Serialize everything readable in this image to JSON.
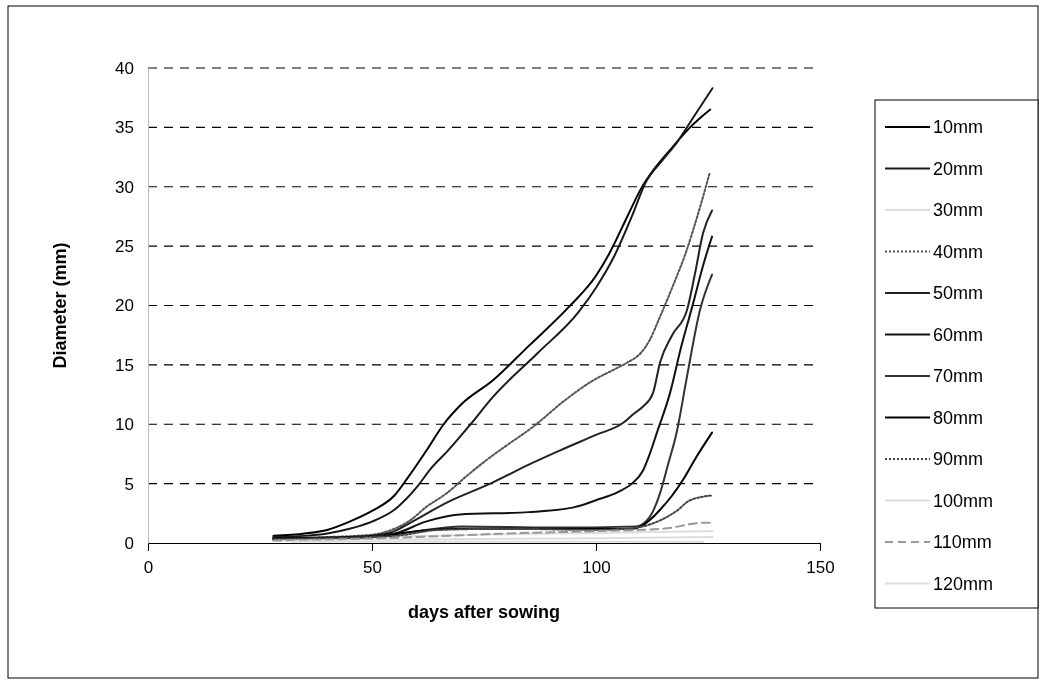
{
  "chart_data": {
    "type": "line",
    "xlabel": "days after sowing",
    "ylabel": "Diameter (mm)",
    "xlim": [
      0,
      150
    ],
    "xticks": [
      0,
      50,
      100,
      150
    ],
    "ylim": [
      0,
      40
    ],
    "yticks": [
      0,
      5,
      10,
      15,
      20,
      25,
      30,
      35,
      40
    ],
    "grid": "y",
    "legend": "right",
    "marker": "none",
    "series": [
      {
        "name": "10mm",
        "color": "#000000",
        "x": [
          28,
          35,
          40,
          45,
          50,
          55,
          58,
          62,
          66,
          70,
          77,
          85,
          94,
          100,
          103,
          107,
          110,
          113,
          117,
          121,
          125.5
        ],
        "values": [
          0.6,
          0.8,
          1.1,
          1.8,
          2.7,
          4.0,
          5.5,
          7.7,
          10.0,
          11.7,
          13.7,
          16.6,
          19.9,
          22.5,
          24.4,
          27.5,
          29.8,
          31.5,
          33.3,
          35,
          36.5
        ]
      },
      {
        "name": "20mm",
        "color": "#1a1a1a",
        "x": [
          28,
          35,
          40,
          45,
          50,
          55,
          60,
          63,
          67,
          72,
          77,
          87,
          96,
          100,
          104,
          108,
          111,
          115,
          118,
          122,
          126
        ],
        "values": [
          0.5,
          0.6,
          0.8,
          1.2,
          1.8,
          2.8,
          4.7,
          6.2,
          7.8,
          10,
          12.3,
          16,
          19.4,
          21.5,
          24.1,
          27.5,
          30.3,
          32.3,
          33.7,
          36,
          38.3
        ]
      },
      {
        "name": "30mm",
        "color": "#dddddd",
        "x": [
          28,
          60,
          90,
          110,
          126
        ],
        "values": [
          0.3,
          0.6,
          0.8,
          0.9,
          1.0
        ]
      },
      {
        "name": "40mm",
        "color": "#555555",
        "line_style": "dotted",
        "x": [
          28,
          40,
          50,
          55,
          58.5,
          62,
          66.7,
          71,
          75.6,
          80,
          86,
          93,
          99.4,
          104,
          107,
          110,
          112,
          114,
          117,
          120,
          123,
          125.4
        ],
        "values": [
          0.4,
          0.5,
          0.7,
          1.2,
          1.9,
          3,
          4.2,
          5.6,
          7,
          8.2,
          9.8,
          12,
          13.7,
          14.6,
          15.2,
          16,
          17.1,
          18.8,
          21.5,
          24.4,
          28,
          31.2
        ]
      },
      {
        "name": "50mm",
        "color": "#222222",
        "x": [
          28,
          40,
          50,
          55,
          58.5,
          66.7,
          77,
          85,
          92,
          100,
          106,
          108.5,
          110.5,
          112.7,
          114.3,
          117,
          120.3,
          122,
          123.9,
          125.9
        ],
        "values": [
          0.4,
          0.4,
          0.6,
          1.0,
          1.7,
          3.4,
          5.1,
          6.6,
          7.8,
          9.1,
          10.1,
          10.9,
          11.5,
          12.6,
          15.2,
          17.5,
          19.6,
          22.5,
          26.1,
          28
        ]
      },
      {
        "name": "60mm",
        "color": "#111111",
        "x": [
          28,
          45,
          55,
          62,
          69.6,
          85,
          95,
          100,
          105,
          108,
          110.5,
          112,
          113.6,
          116.5,
          119,
          121.7,
          124,
          125.9
        ],
        "values": [
          0.4,
          0.5,
          0.8,
          1.8,
          2.4,
          2.6,
          3.0,
          3.6,
          4.3,
          5.0,
          6.1,
          7.5,
          9.3,
          12.6,
          16.5,
          20.2,
          23.5,
          25.8
        ]
      },
      {
        "name": "70mm",
        "color": "#333333",
        "x": [
          28,
          50,
          60,
          70,
          90,
          109,
          112,
          114.3,
          116,
          118,
          120.3,
          123.2,
          125.9
        ],
        "values": [
          0.3,
          0.5,
          1.0,
          1.4,
          1.3,
          1.4,
          2.2,
          4.2,
          6.5,
          9.3,
          14,
          19.6,
          22.6
        ]
      },
      {
        "name": "80mm",
        "color": "#000000",
        "x": [
          28,
          50,
          60,
          70,
          90,
          108,
          110.5,
          112.5,
          114.3,
          117,
          119.4,
          122.5,
          125.9
        ],
        "values": [
          0.3,
          0.5,
          1.0,
          1.2,
          1.2,
          1.2,
          1.5,
          2.1,
          2.8,
          4,
          5.3,
          7.3,
          9.3
        ]
      },
      {
        "name": "90mm",
        "color": "#444444",
        "line_style": "dotted",
        "x": [
          28,
          55,
          65,
          80,
          100,
          109,
          114.3,
          118,
          121,
          125.9
        ],
        "values": [
          0.3,
          0.6,
          1.1,
          1.2,
          1.1,
          1.3,
          1.9,
          2.7,
          3.6,
          4.0
        ]
      },
      {
        "name": "100mm",
        "color": "#dddddd",
        "x": [
          28,
          60,
          100,
          126
        ],
        "values": [
          0.2,
          0.3,
          0.4,
          0.5
        ]
      },
      {
        "name": "110mm",
        "color": "#999999",
        "line_style": "dashed",
        "x": [
          28,
          60,
          80,
          100,
          115,
          124,
          126
        ],
        "values": [
          0.2,
          0.5,
          0.8,
          1.0,
          1.2,
          1.7,
          1.7
        ]
      },
      {
        "name": "120mm",
        "color": "#dddddd",
        "x": [
          32,
          70,
          110,
          124
        ],
        "values": [
          0.1,
          0.1,
          0.1,
          0.1
        ]
      }
    ]
  }
}
